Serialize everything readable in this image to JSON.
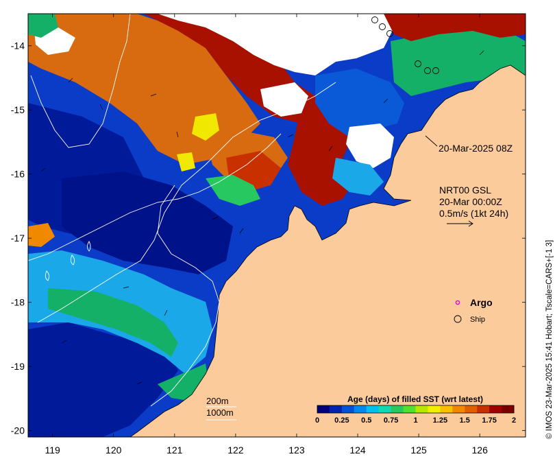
{
  "map": {
    "lon_range": [
      118.6,
      126.75
    ],
    "lat_range": [
      -20.1,
      -13.5
    ],
    "x_ticks": [
      119,
      120,
      121,
      122,
      123,
      124,
      125,
      126
    ],
    "y_ticks": [
      -14,
      -15,
      -16,
      -17,
      -18,
      -19,
      -20
    ],
    "x_tick_labels": [
      "119",
      "120",
      "121",
      "122",
      "123",
      "124",
      "125",
      "126"
    ],
    "y_tick_labels": [
      "-14",
      "-15",
      "-16",
      "-17",
      "-18",
      "-19",
      "-20"
    ]
  },
  "annotations": {
    "timestamp": "20-Mar-2025 08Z",
    "gsl_title": "NRT00 GSL",
    "gsl_time": "20-Mar 00:00Z",
    "current_scale": "0.5m/s (1kt 24h)"
  },
  "legend": {
    "argo": "Argo",
    "ship": "Ship",
    "contour_200": "200m",
    "contour_1000": "1000m"
  },
  "colorbar": {
    "title": "Age (days) of filled SST (wrt latest)",
    "ticks": [
      "0",
      "0.25",
      "0.5",
      "0.75",
      "1",
      "1.25",
      "1.5",
      "1.75",
      "2"
    ],
    "range": [
      0,
      2
    ],
    "colors": [
      "#00007a",
      "#0022b0",
      "#0050d8",
      "#0088ee",
      "#00c0f0",
      "#10d8b0",
      "#28c860",
      "#50e030",
      "#b8e800",
      "#f0f000",
      "#f8c000",
      "#f08800",
      "#e06000",
      "#c83000",
      "#a00000",
      "#7a0000"
    ]
  },
  "credit": "© IMOS 23-Mar-2025 15:41 Hobart; Tscale=CARS+[-1 3]",
  "colors": {
    "land": "#fbcb9b",
    "deep_ocean": "#001a9a",
    "ocean_blue": "#0a3cc8",
    "light_blue": "#1aa8e8",
    "green": "#10b070",
    "orange": "#d86a10",
    "dark_red": "#a81000",
    "yellow": "#f0e800"
  }
}
